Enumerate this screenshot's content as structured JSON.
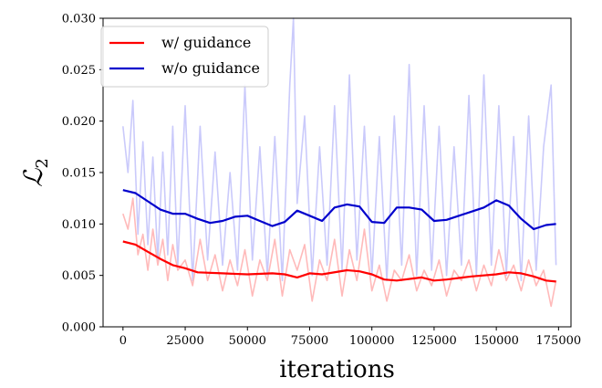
{
  "chart_data": {
    "type": "line",
    "xlabel": "iterations",
    "ylabel": "ℒ",
    "ylabel_subscript": "2",
    "xlim": [
      -8000,
      180000
    ],
    "ylim": [
      0.0,
      0.03
    ],
    "xticks": [
      0,
      25000,
      50000,
      75000,
      100000,
      125000,
      150000,
      175000
    ],
    "xtick_labels": [
      "0",
      "25000",
      "50000",
      "75000",
      "100000",
      "125000",
      "150000",
      "175000"
    ],
    "yticks": [
      0.0,
      0.005,
      0.01,
      0.015,
      0.02,
      0.025,
      0.03
    ],
    "ytick_labels": [
      "0.000",
      "0.005",
      "0.010",
      "0.015",
      "0.020",
      "0.025",
      "0.030"
    ],
    "grid": false,
    "legend_position": "top-left",
    "series": [
      {
        "name": "w/ guidance",
        "color": "#ff0000",
        "raw_color": "#ffb3b3",
        "smoothed": {
          "x": [
            0,
            5000,
            10000,
            15000,
            20000,
            25000,
            30000,
            40000,
            50000,
            60000,
            65000,
            70000,
            75000,
            80000,
            90000,
            95000,
            100000,
            105000,
            110000,
            120000,
            125000,
            130000,
            140000,
            150000,
            155000,
            160000,
            165000,
            170000,
            174000
          ],
          "y": [
            0.0083,
            0.008,
            0.0073,
            0.0066,
            0.006,
            0.0057,
            0.0053,
            0.0052,
            0.0051,
            0.0052,
            0.0051,
            0.0048,
            0.0052,
            0.0051,
            0.0055,
            0.0054,
            0.0051,
            0.0046,
            0.0045,
            0.0048,
            0.0045,
            0.0046,
            0.0049,
            0.0051,
            0.0053,
            0.0052,
            0.0049,
            0.0045,
            0.0044
          ]
        },
        "raw": {
          "x": [
            0,
            2000,
            4000,
            6000,
            8000,
            10000,
            12000,
            14000,
            16000,
            18000,
            20000,
            22000,
            25000,
            28000,
            31000,
            34000,
            37000,
            40000,
            43000,
            46000,
            49000,
            52000,
            55000,
            58000,
            61000,
            64000,
            67000,
            70000,
            73000,
            76000,
            79000,
            82000,
            85000,
            88000,
            91000,
            94000,
            97000,
            100000,
            103000,
            106000,
            109000,
            112000,
            115000,
            118000,
            121000,
            124000,
            127000,
            130000,
            133000,
            136000,
            139000,
            142000,
            145000,
            148000,
            151000,
            154000,
            157000,
            160000,
            163000,
            166000,
            169000,
            172000,
            174000
          ],
          "y": [
            0.011,
            0.0095,
            0.0125,
            0.007,
            0.009,
            0.0055,
            0.0095,
            0.006,
            0.0085,
            0.0045,
            0.008,
            0.0055,
            0.0065,
            0.004,
            0.0085,
            0.0045,
            0.007,
            0.0035,
            0.0065,
            0.004,
            0.0075,
            0.003,
            0.0065,
            0.0045,
            0.0085,
            0.003,
            0.0075,
            0.0055,
            0.008,
            0.0025,
            0.0065,
            0.0045,
            0.0085,
            0.003,
            0.0075,
            0.0045,
            0.0095,
            0.0035,
            0.006,
            0.0025,
            0.0055,
            0.0045,
            0.007,
            0.0035,
            0.0055,
            0.004,
            0.0065,
            0.003,
            0.0055,
            0.0045,
            0.0065,
            0.0035,
            0.006,
            0.004,
            0.0075,
            0.0045,
            0.006,
            0.0035,
            0.0065,
            0.004,
            0.0055,
            0.002,
            0.0045
          ]
        }
      },
      {
        "name": "w/o guidance",
        "color": "#0000cc",
        "raw_color": "#c4c4fb",
        "smoothed": {
          "x": [
            0,
            5000,
            10000,
            15000,
            20000,
            25000,
            30000,
            35000,
            40000,
            45000,
            50000,
            55000,
            60000,
            65000,
            70000,
            75000,
            80000,
            85000,
            90000,
            95000,
            100000,
            105000,
            110000,
            115000,
            120000,
            125000,
            130000,
            135000,
            140000,
            145000,
            150000,
            155000,
            160000,
            165000,
            170000,
            174000
          ],
          "y": [
            0.0133,
            0.013,
            0.0122,
            0.0114,
            0.011,
            0.011,
            0.0105,
            0.0101,
            0.0103,
            0.0107,
            0.0108,
            0.0103,
            0.0098,
            0.0102,
            0.0113,
            0.0108,
            0.0103,
            0.0116,
            0.0119,
            0.0117,
            0.0102,
            0.0101,
            0.0116,
            0.0116,
            0.0114,
            0.0103,
            0.0104,
            0.0108,
            0.0112,
            0.0116,
            0.0123,
            0.0118,
            0.0105,
            0.0095,
            0.0099,
            0.01
          ]
        },
        "raw": {
          "x": [
            0,
            2000,
            4000,
            6000,
            8000,
            10000,
            12000,
            14000,
            16000,
            18000,
            20000,
            22000,
            25000,
            28000,
            31000,
            34000,
            37000,
            40000,
            43000,
            46000,
            49000,
            52000,
            55000,
            58000,
            61000,
            64000,
            67000,
            68500,
            70000,
            73000,
            76000,
            79000,
            82000,
            85000,
            88000,
            91000,
            94000,
            97000,
            100000,
            103000,
            106000,
            109000,
            112000,
            115000,
            118000,
            121000,
            124000,
            127000,
            130000,
            133000,
            136000,
            139000,
            142000,
            145000,
            148000,
            151000,
            154000,
            157000,
            160000,
            163000,
            166000,
            169000,
            172000,
            174000
          ],
          "y": [
            0.0195,
            0.015,
            0.022,
            0.009,
            0.018,
            0.008,
            0.0165,
            0.0065,
            0.017,
            0.007,
            0.0195,
            0.006,
            0.0215,
            0.0045,
            0.0195,
            0.0065,
            0.017,
            0.006,
            0.015,
            0.0055,
            0.0235,
            0.0065,
            0.0175,
            0.005,
            0.0185,
            0.0045,
            0.0235,
            0.03,
            0.012,
            0.0205,
            0.005,
            0.0175,
            0.006,
            0.0215,
            0.0055,
            0.0245,
            0.0065,
            0.0195,
            0.005,
            0.0185,
            0.0045,
            0.0205,
            0.006,
            0.0255,
            0.005,
            0.0215,
            0.0055,
            0.0195,
            0.005,
            0.0175,
            0.006,
            0.0225,
            0.005,
            0.0245,
            0.006,
            0.0215,
            0.005,
            0.0185,
            0.0045,
            0.0205,
            0.0055,
            0.0175,
            0.0235,
            0.006
          ]
        }
      }
    ]
  }
}
